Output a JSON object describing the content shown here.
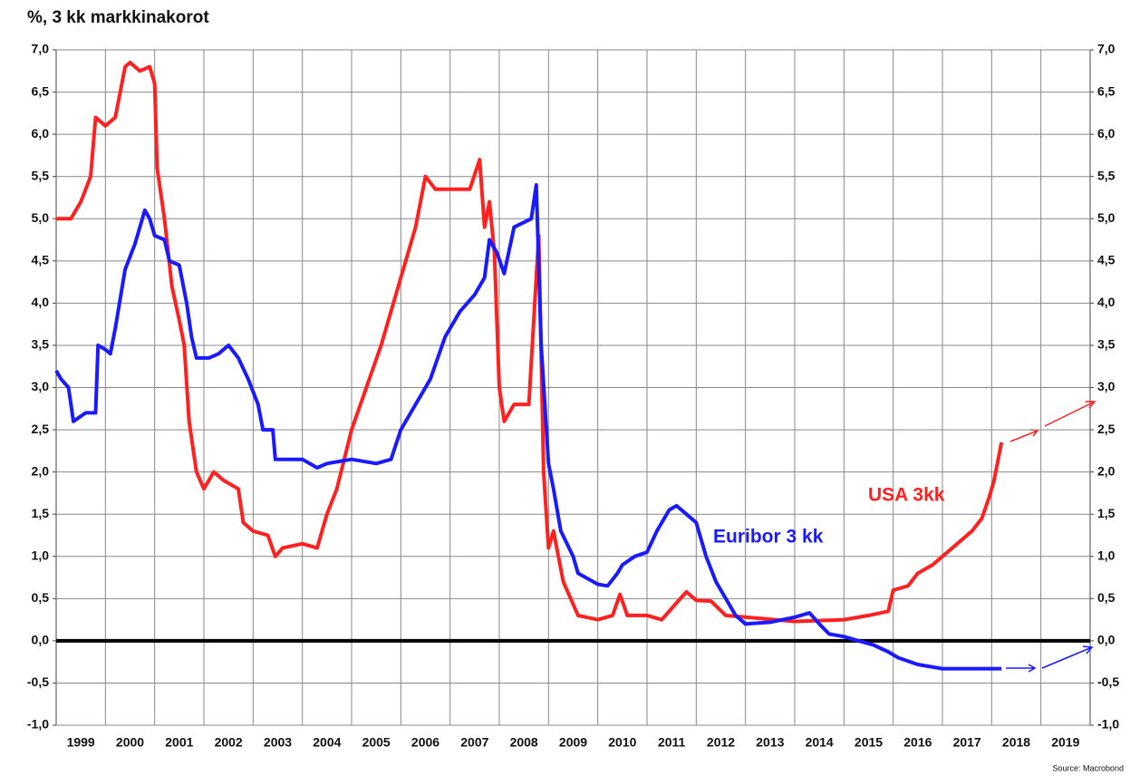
{
  "chart_data": {
    "type": "line",
    "title": "%, 3 kk markkinakorot",
    "source": "Source: Macrobond",
    "categories": [
      "1999",
      "2000",
      "2001",
      "2002",
      "2003",
      "2004",
      "2005",
      "2006",
      "2007",
      "2008",
      "2009",
      "2010",
      "2011",
      "2012",
      "2013",
      "2014",
      "2015",
      "2016",
      "2017",
      "2018",
      "2019"
    ],
    "xlim": [
      1999,
      2020
    ],
    "ylim": [
      -1,
      7
    ],
    "yticks": [
      {
        "value": -1,
        "label": "-1,0"
      },
      {
        "value": -0.5,
        "label": "-0,5"
      },
      {
        "value": 0,
        "label": "0,0"
      },
      {
        "value": 0.5,
        "label": "0,5"
      },
      {
        "value": 1,
        "label": "1,0"
      },
      {
        "value": 1.5,
        "label": "1,5"
      },
      {
        "value": 2,
        "label": "2,0"
      },
      {
        "value": 2.5,
        "label": "2,5"
      },
      {
        "value": 3,
        "label": "3,0"
      },
      {
        "value": 3.5,
        "label": "3,5"
      },
      {
        "value": 4,
        "label": "4,0"
      },
      {
        "value": 4.5,
        "label": "4,5"
      },
      {
        "value": 5,
        "label": "5,0"
      },
      {
        "value": 5.5,
        "label": "5,5"
      },
      {
        "value": 6,
        "label": "6,0"
      },
      {
        "value": 6.5,
        "label": "6,5"
      },
      {
        "value": 7,
        "label": "7,0"
      }
    ],
    "y2lim": [
      -1,
      7
    ],
    "y2ticks": [
      {
        "value": -1,
        "label": "-1,0"
      },
      {
        "value": -0.5,
        "label": "-0,5"
      },
      {
        "value": 0,
        "label": "0,0"
      },
      {
        "value": 0.5,
        "label": "0,5"
      },
      {
        "value": 1,
        "label": "1,0"
      },
      {
        "value": 1.5,
        "label": "1,5"
      },
      {
        "value": 2,
        "label": "2,0"
      },
      {
        "value": 2.5,
        "label": "2,5"
      },
      {
        "value": 3,
        "label": "3,0"
      },
      {
        "value": 3.5,
        "label": "3,5"
      },
      {
        "value": 4,
        "label": "4,0"
      },
      {
        "value": 4.5,
        "label": "4,5"
      },
      {
        "value": 5,
        "label": "5,0"
      },
      {
        "value": 5.5,
        "label": "5,5"
      },
      {
        "value": 6,
        "label": "6,0"
      },
      {
        "value": 6.5,
        "label": "6,5"
      },
      {
        "value": 7,
        "label": "7,0"
      }
    ],
    "grid": true,
    "series": [
      {
        "name": "USA 3kk",
        "color": "#ff2020",
        "x": [
          1999.0,
          1999.3,
          1999.5,
          1999.7,
          1999.8,
          2000.0,
          2000.2,
          2000.4,
          2000.5,
          2000.7,
          2000.9,
          2001.0,
          2001.05,
          2001.2,
          2001.35,
          2001.5,
          2001.6,
          2001.7,
          2001.85,
          2002.0,
          2002.2,
          2002.4,
          2002.7,
          2002.8,
          2003.0,
          2003.3,
          2003.45,
          2003.6,
          2004.0,
          2004.3,
          2004.5,
          2004.7,
          2005.0,
          2005.3,
          2005.6,
          2006.0,
          2006.3,
          2006.5,
          2006.7,
          2007.0,
          2007.4,
          2007.6,
          2007.7,
          2007.8,
          2007.9,
          2008.0,
          2008.1,
          2008.3,
          2008.6,
          2008.8,
          2008.9,
          2009.0,
          2009.1,
          2009.3,
          2009.6,
          2010.0,
          2010.3,
          2010.45,
          2010.6,
          2011.0,
          2011.3,
          2011.6,
          2011.8,
          2012.0,
          2012.3,
          2012.6,
          2013.0,
          2014.0,
          2015.0,
          2015.5,
          2015.9,
          2016.0,
          2016.3,
          2016.5,
          2016.8,
          2017.0,
          2017.3,
          2017.6,
          2017.8,
          2017.95,
          2018.05,
          2018.2
        ],
        "values": [
          5.0,
          5.0,
          5.2,
          5.5,
          6.2,
          6.1,
          6.2,
          6.8,
          6.85,
          6.75,
          6.8,
          6.6,
          5.6,
          5.0,
          4.2,
          3.8,
          3.5,
          2.6,
          2.0,
          1.8,
          2.0,
          1.9,
          1.8,
          1.4,
          1.3,
          1.25,
          1.0,
          1.1,
          1.15,
          1.1,
          1.5,
          1.8,
          2.5,
          3.0,
          3.5,
          4.3,
          4.9,
          5.5,
          5.35,
          5.35,
          5.35,
          5.7,
          4.9,
          5.2,
          4.6,
          3.0,
          2.6,
          2.8,
          2.8,
          4.8,
          2.0,
          1.1,
          1.3,
          0.7,
          0.3,
          0.25,
          0.3,
          0.55,
          0.3,
          0.3,
          0.25,
          0.45,
          0.58,
          0.48,
          0.47,
          0.3,
          0.28,
          0.23,
          0.25,
          0.3,
          0.35,
          0.6,
          0.65,
          0.8,
          0.9,
          1.0,
          1.15,
          1.3,
          1.45,
          1.7,
          1.9,
          2.35
        ]
      },
      {
        "name": "Euribor 3 kk",
        "color": "#1a1aff",
        "x": [
          1999.0,
          1999.1,
          1999.25,
          1999.35,
          1999.6,
          1999.8,
          1999.85,
          2000.0,
          2000.1,
          2000.2,
          2000.4,
          2000.6,
          2000.8,
          2000.9,
          2001.0,
          2001.2,
          2001.3,
          2001.5,
          2001.65,
          2001.75,
          2001.85,
          2002.1,
          2002.3,
          2002.5,
          2002.7,
          2002.9,
          2003.1,
          2003.2,
          2003.4,
          2003.45,
          2004.0,
          2004.3,
          2004.5,
          2005.0,
          2005.5,
          2005.8,
          2006.0,
          2006.3,
          2006.6,
          2006.9,
          2007.2,
          2007.5,
          2007.7,
          2007.8,
          2007.95,
          2008.1,
          2008.3,
          2008.65,
          2008.75,
          2008.85,
          2009.0,
          2009.1,
          2009.25,
          2009.5,
          2009.6,
          2010.0,
          2010.2,
          2010.4,
          2010.5,
          2010.75,
          2011.0,
          2011.2,
          2011.45,
          2011.6,
          2011.8,
          2012.0,
          2012.2,
          2012.4,
          2012.6,
          2012.8,
          2013.0,
          2013.5,
          2014.0,
          2014.3,
          2014.5,
          2014.7,
          2015.0,
          2015.3,
          2015.6,
          2015.9,
          2016.1,
          2016.5,
          2017.0,
          2017.5,
          2018.2
        ],
        "values": [
          3.2,
          3.1,
          3.0,
          2.6,
          2.7,
          2.7,
          3.5,
          3.45,
          3.4,
          3.7,
          4.4,
          4.7,
          5.1,
          5.0,
          4.8,
          4.75,
          4.5,
          4.45,
          4.0,
          3.6,
          3.35,
          3.35,
          3.4,
          3.5,
          3.35,
          3.1,
          2.8,
          2.5,
          2.5,
          2.15,
          2.15,
          2.05,
          2.1,
          2.15,
          2.1,
          2.15,
          2.5,
          2.8,
          3.1,
          3.6,
          3.9,
          4.1,
          4.3,
          4.75,
          4.6,
          4.35,
          4.9,
          5.0,
          5.4,
          3.5,
          2.1,
          1.8,
          1.3,
          1.0,
          0.8,
          0.67,
          0.65,
          0.8,
          0.9,
          1.0,
          1.05,
          1.3,
          1.55,
          1.6,
          1.5,
          1.4,
          1.0,
          0.7,
          0.5,
          0.3,
          0.2,
          0.22,
          0.28,
          0.33,
          0.2,
          0.08,
          0.05,
          0.0,
          -0.05,
          -0.13,
          -0.2,
          -0.28,
          -0.33,
          -0.33,
          -0.33
        ]
      }
    ]
  }
}
